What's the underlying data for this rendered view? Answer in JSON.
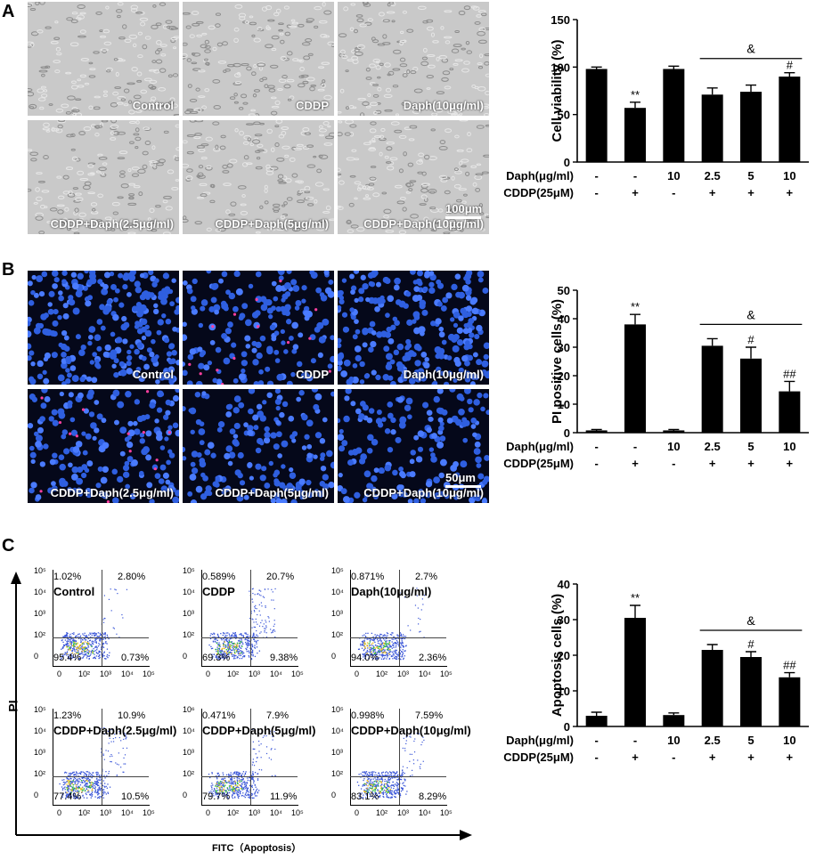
{
  "panels": {
    "a": "A",
    "b": "B",
    "c": "C"
  },
  "panelA": {
    "tiles": [
      "Control",
      "CDDP",
      "Daph(10μg/ml)",
      "CDDP+Daph(2.5μg/ml)",
      "CDDP+Daph(5μg/ml)",
      "CDDP+Daph(10μg/ml)"
    ],
    "scale": "100μm"
  },
  "panelB": {
    "tiles": [
      "Control",
      "CDDP",
      "Daph(10μg/ml)",
      "CDDP+Daph(2.5μg/ml)",
      "CDDP+Daph(5μg/ml)",
      "CDDP+Daph(10μg/ml)"
    ],
    "scale": "50μm"
  },
  "panelC": {
    "ylabel": "PI",
    "xlabel": "FITC（Apoptosis）",
    "yticks": [
      "10⁵",
      "10⁴",
      "10³",
      "10²",
      "0"
    ],
    "xticks": [
      "0",
      "10²",
      "10³",
      "10⁴",
      "10⁵"
    ],
    "plots": [
      {
        "name": "Control",
        "ul": "1.02%",
        "ur": "2.80%",
        "ll": "95.4%",
        "lr": "0.73%"
      },
      {
        "name": "CDDP",
        "ul": "0.589%",
        "ur": "20.7%",
        "ll": "69.3%",
        "lr": "9.38%"
      },
      {
        "name": "Daph(10μg/ml)",
        "ul": "0.871%",
        "ur": "2.7%",
        "ll": "94.0%",
        "lr": "2.36%"
      },
      {
        "name": "CDDP+Daph(2.5μg/ml)",
        "ul": "1.23%",
        "ur": "10.9%",
        "ll": "77.4%",
        "lr": "10.5%"
      },
      {
        "name": "CDDP+Daph(5μg/ml)",
        "ul": "0.471%",
        "ur": "7.9%",
        "ll": "79.7%",
        "lr": "11.9%"
      },
      {
        "name": "CDDP+Daph(10μg/ml)",
        "ul": "0.998%",
        "ur": "7.59%",
        "ll": "83.1%",
        "lr": "8.29%"
      }
    ],
    "plot_yticks_top": [
      "10⁵",
      "10⁵",
      "10⁵",
      "10⁵",
      "10⁶",
      "10⁵"
    ]
  },
  "chart_data": [
    {
      "type": "bar",
      "categories": [
        "1",
        "2",
        "3",
        "4",
        "5",
        "6"
      ],
      "values": [
        98,
        57,
        98,
        71,
        74,
        90
      ],
      "errors": [
        2,
        6,
        3,
        7,
        7,
        4
      ],
      "sig": [
        "",
        "**",
        "",
        "",
        "",
        "#"
      ],
      "ylabel": "Cell viability (%)",
      "ylim": [
        0,
        150
      ],
      "yticks": [
        0,
        50,
        100,
        150
      ],
      "bracket_label": "&",
      "rows": [
        {
          "label": "Daph(μg/ml)",
          "values": [
            "-",
            "-",
            "10",
            "2.5",
            "5",
            "10"
          ]
        },
        {
          "label": "CDDP(25μM)",
          "values": [
            "-",
            "+",
            "-",
            "+",
            "+",
            "+"
          ]
        }
      ]
    },
    {
      "type": "bar",
      "categories": [
        "1",
        "2",
        "3",
        "4",
        "5",
        "6"
      ],
      "values": [
        0.8,
        38,
        0.8,
        30.5,
        26,
        14.5
      ],
      "errors": [
        0.3,
        3.5,
        0.3,
        2.5,
        4,
        3.5
      ],
      "sig": [
        "",
        "**",
        "",
        "",
        "#",
        "##"
      ],
      "ylabel": "PI positive cells (%)",
      "ylim": [
        0,
        50
      ],
      "yticks": [
        0,
        10,
        20,
        30,
        40,
        50
      ],
      "bracket_label": "&",
      "rows": [
        {
          "label": "Daph(μg/ml)",
          "values": [
            "-",
            "-",
            "10",
            "2.5",
            "5",
            "10"
          ]
        },
        {
          "label": "CDDP(25μM)",
          "values": [
            "-",
            "+",
            "-",
            "+",
            "+",
            "+"
          ]
        }
      ]
    },
    {
      "type": "bar",
      "categories": [
        "1",
        "2",
        "3",
        "4",
        "5",
        "6"
      ],
      "values": [
        3,
        30.5,
        3.2,
        21.5,
        19.5,
        13.8
      ],
      "errors": [
        1,
        3.5,
        0.6,
        1.5,
        1.5,
        1.3
      ],
      "sig": [
        "",
        "**",
        "",
        "",
        "#",
        "##"
      ],
      "ylabel": "Apoptosis cells (%)",
      "ylim": [
        0,
        40
      ],
      "yticks": [
        0,
        10,
        20,
        30,
        40
      ],
      "bracket_label": "&",
      "rows": [
        {
          "label": "Daph(μg/ml)",
          "values": [
            "-",
            "-",
            "10",
            "2.5",
            "5",
            "10"
          ]
        },
        {
          "label": "CDDP(25μM)",
          "values": [
            "-",
            "+",
            "-",
            "+",
            "+",
            "+"
          ]
        }
      ]
    }
  ]
}
